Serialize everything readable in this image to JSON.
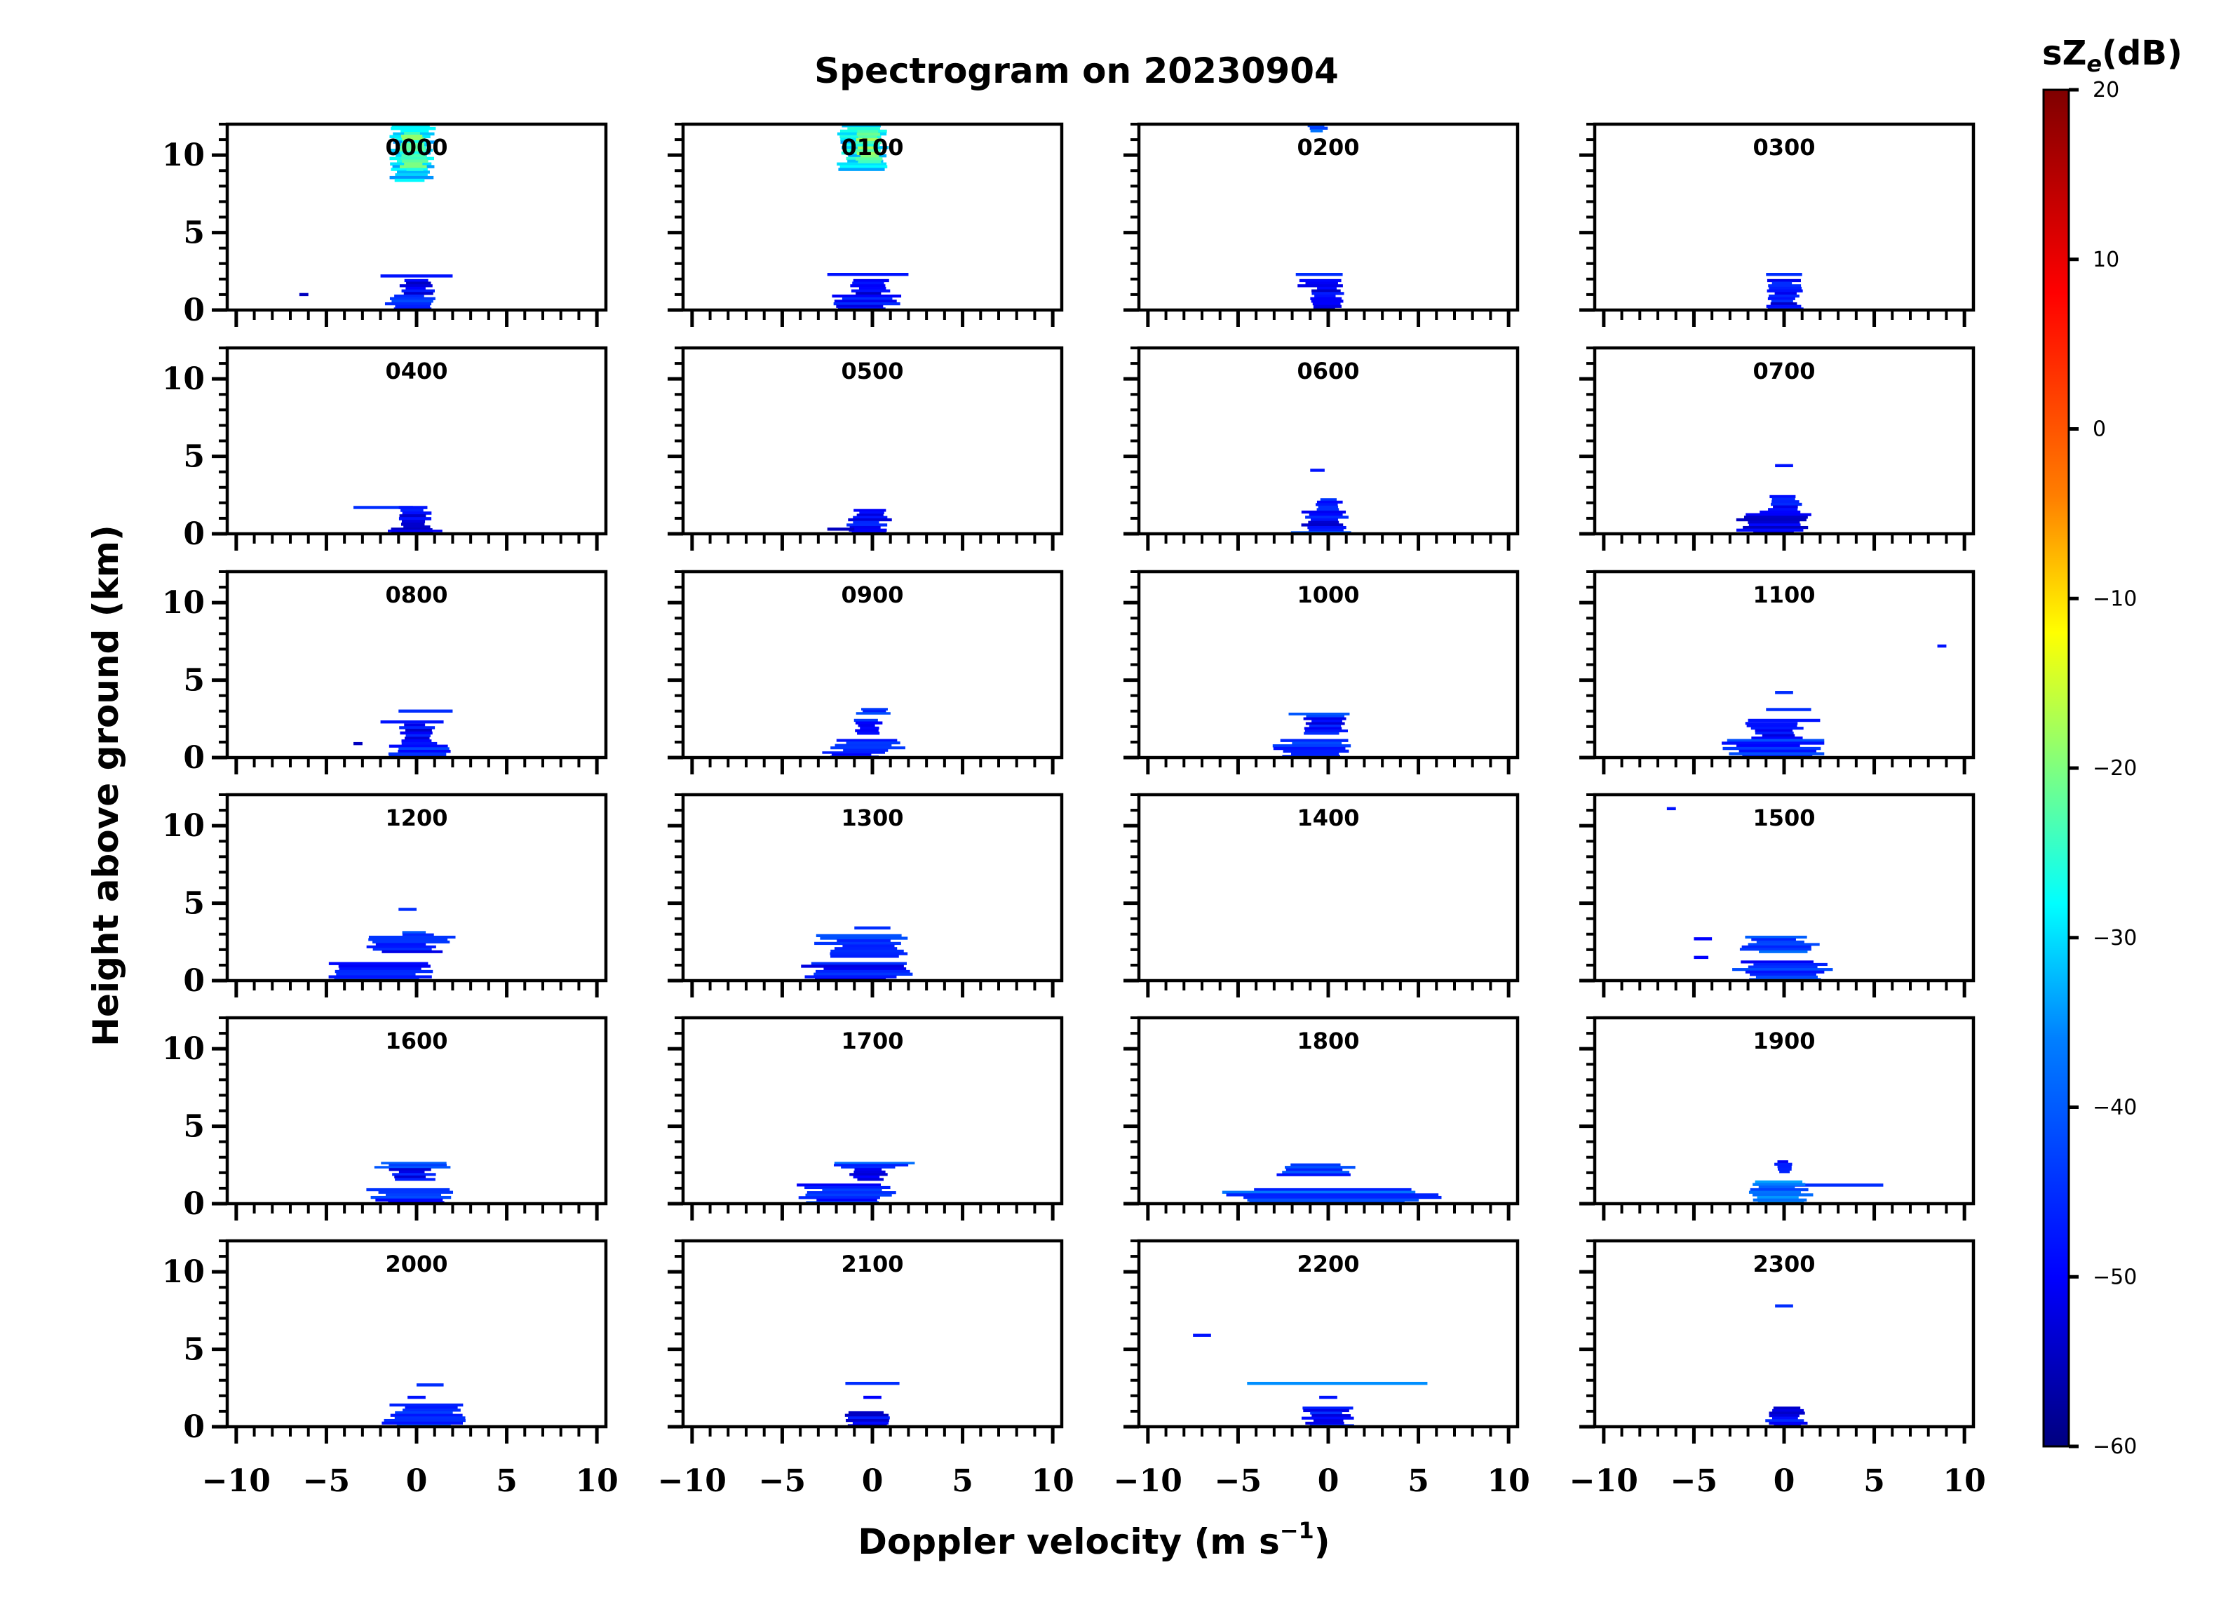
{
  "figure": {
    "title": "Spectrogram on 20230904",
    "xlabel": "Doppler velocity (m s",
    "xlabel_sup": "−1",
    "xlabel_end": ")",
    "ylabel": "Height above ground (km)",
    "colorbar_label_main": "sZ",
    "colorbar_label_sub": "e",
    "colorbar_label_end": "(dB)"
  },
  "chart_data": {
    "type": "heatmap",
    "title": "Spectrogram on 20230904",
    "xlabel": "Doppler velocity (m s−1)",
    "ylabel": "Height above ground (km)",
    "xlim": [
      -10.5,
      10.5
    ],
    "ylim": [
      0,
      12
    ],
    "x_ticks": [
      -10,
      -5,
      0,
      5,
      10
    ],
    "x_tick_labels": [
      "−10",
      "−5",
      "0",
      "5",
      "10"
    ],
    "y_ticks": [
      0,
      5,
      10
    ],
    "y_tick_labels": [
      "0",
      "5",
      "10"
    ],
    "colorbar": {
      "label": "sZe(dB)",
      "range": [
        -60,
        20
      ],
      "ticks": [
        20,
        10,
        0,
        -10,
        -20,
        -30,
        -40,
        -50,
        -60
      ],
      "tick_labels": [
        "20",
        "10",
        "0",
        "−10",
        "−20",
        "−30",
        "−40",
        "−50",
        "−60"
      ],
      "colormap": [
        "#00007f",
        "#0000ff",
        "#007fff",
        "#00ffff",
        "#7fff7f",
        "#ffff00",
        "#ff7f00",
        "#ff0000",
        "#7f0000"
      ]
    },
    "panels": [
      {
        "label": "0000",
        "features": [
          {
            "v": [
              -1.5,
              1.0
            ],
            "h": [
              8.3,
              12.0
            ],
            "dbz": -30
          },
          {
            "v": [
              -1.0,
              0.6
            ],
            "h": [
              9.0,
              11.5
            ],
            "dbz": -22
          },
          {
            "v": [
              -2.0,
              2.0
            ],
            "h": [
              2.1,
              2.3
            ],
            "dbz": -48
          },
          {
            "v": [
              -1.0,
              1.0
            ],
            "h": [
              1.0,
              2.0
            ],
            "dbz": -52
          },
          {
            "v": [
              -1.8,
              1.2
            ],
            "h": [
              0.0,
              1.0
            ],
            "dbz": -46
          },
          {
            "v": [
              -6.5,
              -6.0
            ],
            "h": [
              0.9,
              1.1
            ],
            "dbz": -55
          }
        ]
      },
      {
        "label": "0100",
        "features": [
          {
            "v": [
              -2.0,
              1.0
            ],
            "h": [
              9.0,
              12.0
            ],
            "dbz": -30
          },
          {
            "v": [
              -1.0,
              0.5
            ],
            "h": [
              9.5,
              11.8
            ],
            "dbz": -22
          },
          {
            "v": [
              -2.5,
              2.0
            ],
            "h": [
              2.2,
              2.4
            ],
            "dbz": -48
          },
          {
            "v": [
              -1.2,
              1.0
            ],
            "h": [
              1.0,
              2.0
            ],
            "dbz": -52
          },
          {
            "v": [
              -2.5,
              1.5
            ],
            "h": [
              0.0,
              1.0
            ],
            "dbz": -48
          }
        ]
      },
      {
        "label": "0200",
        "features": [
          {
            "v": [
              -1.2,
              0.0
            ],
            "h": [
              11.5,
              12.0
            ],
            "dbz": -40
          },
          {
            "v": [
              -1.8,
              0.8
            ],
            "h": [
              2.2,
              2.4
            ],
            "dbz": -45
          },
          {
            "v": [
              -2.0,
              1.0
            ],
            "h": [
              1.5,
              2.0
            ],
            "dbz": -50
          },
          {
            "v": [
              -1.0,
              0.8
            ],
            "h": [
              0.0,
              1.5
            ],
            "dbz": -50
          }
        ]
      },
      {
        "label": "0300",
        "features": [
          {
            "v": [
              -1.0,
              1.0
            ],
            "h": [
              2.2,
              2.4
            ],
            "dbz": -45
          },
          {
            "v": [
              -1.0,
              1.0
            ],
            "h": [
              0.0,
              2.0
            ],
            "dbz": -50
          }
        ]
      },
      {
        "label": "0400",
        "features": [
          {
            "v": [
              -3.5,
              -0.2
            ],
            "h": [
              1.6,
              1.8
            ],
            "dbz": -45
          },
          {
            "v": [
              -1.2,
              1.0
            ],
            "h": [
              0.0,
              1.8
            ],
            "dbz": -50
          },
          {
            "v": [
              -2.0,
              1.5
            ],
            "h": [
              0.0,
              0.4
            ],
            "dbz": -52
          }
        ]
      },
      {
        "label": "0500",
        "features": [
          {
            "v": [
              -1.0,
              1.0
            ],
            "h": [
              1.0,
              1.6
            ],
            "dbz": -48
          },
          {
            "v": [
              -1.5,
              1.0
            ],
            "h": [
              0.0,
              1.0
            ],
            "dbz": -50
          },
          {
            "v": [
              -2.5,
              -1.0
            ],
            "h": [
              0.2,
              0.4
            ],
            "dbz": -55
          }
        ]
      },
      {
        "label": "0600",
        "features": [
          {
            "v": [
              -1.0,
              -0.2
            ],
            "h": [
              4.0,
              4.2
            ],
            "dbz": -48
          },
          {
            "v": [
              -0.8,
              0.8
            ],
            "h": [
              1.5,
              2.3
            ],
            "dbz": -48
          },
          {
            "v": [
              -1.5,
              1.0
            ],
            "h": [
              0.5,
              1.5
            ],
            "dbz": -50
          },
          {
            "v": [
              -2.0,
              1.5
            ],
            "h": [
              0.0,
              0.5
            ],
            "dbz": -45
          }
        ]
      },
      {
        "label": "0700",
        "features": [
          {
            "v": [
              -0.5,
              0.5
            ],
            "h": [
              4.3,
              4.5
            ],
            "dbz": -48
          },
          {
            "v": [
              -1.0,
              1.0
            ],
            "h": [
              1.5,
              2.5
            ],
            "dbz": -48
          },
          {
            "v": [
              -2.5,
              1.5
            ],
            "h": [
              0.0,
              1.5
            ],
            "dbz": -50
          }
        ]
      },
      {
        "label": "0800",
        "features": [
          {
            "v": [
              -1.0,
              2.0
            ],
            "h": [
              2.9,
              3.1
            ],
            "dbz": -45
          },
          {
            "v": [
              -2.0,
              1.5
            ],
            "h": [
              2.2,
              2.4
            ],
            "dbz": -48
          },
          {
            "v": [
              -1.0,
              1.0
            ],
            "h": [
              1.0,
              2.2
            ],
            "dbz": -50
          },
          {
            "v": [
              -1.5,
              2.0
            ],
            "h": [
              0.0,
              1.0
            ],
            "dbz": -46
          },
          {
            "v": [
              -3.5,
              -3.0
            ],
            "h": [
              0.8,
              1.0
            ],
            "dbz": -55
          }
        ]
      },
      {
        "label": "0900",
        "features": [
          {
            "v": [
              -1.0,
              1.0
            ],
            "h": [
              2.8,
              3.2
            ],
            "dbz": -45
          },
          {
            "v": [
              -1.0,
              0.5
            ],
            "h": [
              1.5,
              2.5
            ],
            "dbz": -48
          },
          {
            "v": [
              -2.5,
              2.0
            ],
            "h": [
              0.4,
              1.2
            ],
            "dbz": -46
          },
          {
            "v": [
              -3.0,
              0.5
            ],
            "h": [
              0.0,
              0.4
            ],
            "dbz": -50
          }
        ]
      },
      {
        "label": "1000",
        "features": [
          {
            "v": [
              -2.0,
              1.5
            ],
            "h": [
              2.6,
              2.9
            ],
            "dbz": -45
          },
          {
            "v": [
              -1.5,
              1.0
            ],
            "h": [
              1.5,
              2.6
            ],
            "dbz": -50
          },
          {
            "v": [
              -3.0,
              1.5
            ],
            "h": [
              0.0,
              1.2
            ],
            "dbz": -46
          }
        ]
      },
      {
        "label": "1100",
        "features": [
          {
            "v": [
              -0.5,
              0.5
            ],
            "h": [
              4.1,
              4.3
            ],
            "dbz": -45
          },
          {
            "v": [
              -1.0,
              1.5
            ],
            "h": [
              3.0,
              3.2
            ],
            "dbz": -45
          },
          {
            "v": [
              -2.0,
              2.0
            ],
            "h": [
              2.3,
              2.5
            ],
            "dbz": -48
          },
          {
            "v": [
              -2.0,
              1.0
            ],
            "h": [
              1.2,
              2.3
            ],
            "dbz": -50
          },
          {
            "v": [
              -3.5,
              2.5
            ],
            "h": [
              0.0,
              1.2
            ],
            "dbz": -46
          },
          {
            "v": [
              8.5,
              9.0
            ],
            "h": [
              7.1,
              7.3
            ],
            "dbz": -48
          }
        ]
      },
      {
        "label": "1200",
        "features": [
          {
            "v": [
              -1.0,
              0.0
            ],
            "h": [
              4.5,
              4.7
            ],
            "dbz": -45
          },
          {
            "v": [
              -1.0,
              1.0
            ],
            "h": [
              2.9,
              3.2
            ],
            "dbz": -45
          },
          {
            "v": [
              -3.0,
              2.0
            ],
            "h": [
              1.8,
              2.9
            ],
            "dbz": -48
          },
          {
            "v": [
              -5.5,
              1.5
            ],
            "h": [
              0.0,
              1.2
            ],
            "dbz": -46
          }
        ]
      },
      {
        "label": "1300",
        "features": [
          {
            "v": [
              -1.0,
              1.0
            ],
            "h": [
              3.3,
              3.5
            ],
            "dbz": -45
          },
          {
            "v": [
              -3.0,
              2.0
            ],
            "h": [
              1.5,
              3.0
            ],
            "dbz": -42
          },
          {
            "v": [
              -4.0,
              2.5
            ],
            "h": [
              0.0,
              1.2
            ],
            "dbz": -48
          }
        ]
      },
      {
        "label": "1400",
        "features": []
      },
      {
        "label": "1500",
        "features": [
          {
            "v": [
              -6.5,
              -6.0
            ],
            "h": [
              11.0,
              11.2
            ],
            "dbz": -48
          },
          {
            "v": [
              -5.0,
              -4.0
            ],
            "h": [
              2.6,
              2.8
            ],
            "dbz": -50
          },
          {
            "v": [
              -5.0,
              -4.2
            ],
            "h": [
              1.4,
              1.6
            ],
            "dbz": -50
          },
          {
            "v": [
              -2.5,
              2.0
            ],
            "h": [
              1.8,
              2.9
            ],
            "dbz": -42
          },
          {
            "v": [
              -3.0,
              3.0
            ],
            "h": [
              0.0,
              1.3
            ],
            "dbz": -46
          }
        ]
      },
      {
        "label": "1600",
        "features": [
          {
            "v": [
              -2.5,
              2.5
            ],
            "h": [
              2.3,
              2.7
            ],
            "dbz": -42
          },
          {
            "v": [
              -1.5,
              1.0
            ],
            "h": [
              1.5,
              2.3
            ],
            "dbz": -50
          },
          {
            "v": [
              -3.0,
              2.5
            ],
            "h": [
              0.0,
              1.0
            ],
            "dbz": -46
          }
        ]
      },
      {
        "label": "1700",
        "features": [
          {
            "v": [
              -2.5,
              2.5
            ],
            "h": [
              2.3,
              2.7
            ],
            "dbz": -42
          },
          {
            "v": [
              -1.5,
              1.0
            ],
            "h": [
              1.5,
              2.3
            ],
            "dbz": -50
          },
          {
            "v": [
              -4.0,
              1.0
            ],
            "h": [
              0.0,
              1.3
            ],
            "dbz": -46
          }
        ]
      },
      {
        "label": "1800",
        "features": [
          {
            "v": [
              -3.0,
              1.5
            ],
            "h": [
              1.8,
              2.6
            ],
            "dbz": -45
          },
          {
            "v": [
              -6.0,
              6.0
            ],
            "h": [
              0.0,
              1.0
            ],
            "dbz": -42
          }
        ]
      },
      {
        "label": "1900",
        "features": [
          {
            "v": [
              -0.5,
              0.5
            ],
            "h": [
              2.0,
              2.8
            ],
            "dbz": -48
          },
          {
            "v": [
              -1.0,
              5.5
            ],
            "h": [
              1.1,
              1.3
            ],
            "dbz": -45
          },
          {
            "v": [
              -2.0,
              1.5
            ],
            "h": [
              0.0,
              1.5
            ],
            "dbz": -38
          }
        ]
      },
      {
        "label": "2000",
        "features": [
          {
            "v": [
              0.0,
              1.5
            ],
            "h": [
              2.6,
              2.8
            ],
            "dbz": -45
          },
          {
            "v": [
              -0.5,
              0.5
            ],
            "h": [
              1.8,
              2.0
            ],
            "dbz": -48
          },
          {
            "v": [
              -2.0,
              3.0
            ],
            "h": [
              0.0,
              1.5
            ],
            "dbz": -46
          }
        ]
      },
      {
        "label": "2100",
        "features": [
          {
            "v": [
              -1.5,
              1.5
            ],
            "h": [
              2.7,
              2.9
            ],
            "dbz": -45
          },
          {
            "v": [
              -0.5,
              0.5
            ],
            "h": [
              1.8,
              2.0
            ],
            "dbz": -50
          },
          {
            "v": [
              -1.5,
              1.0
            ],
            "h": [
              0.0,
              1.0
            ],
            "dbz": -50
          }
        ]
      },
      {
        "label": "2200",
        "features": [
          {
            "v": [
              -7.5,
              -6.5
            ],
            "h": [
              5.8,
              6.0
            ],
            "dbz": -48
          },
          {
            "v": [
              -4.5,
              5.5
            ],
            "h": [
              2.7,
              2.9
            ],
            "dbz": -35
          },
          {
            "v": [
              -0.5,
              0.5
            ],
            "h": [
              1.8,
              2.0
            ],
            "dbz": -48
          },
          {
            "v": [
              -1.5,
              1.5
            ],
            "h": [
              0.0,
              1.3
            ],
            "dbz": -48
          }
        ]
      },
      {
        "label": "2300",
        "features": [
          {
            "v": [
              -0.5,
              0.5
            ],
            "h": [
              7.7,
              7.9
            ],
            "dbz": -45
          },
          {
            "v": [
              -1.0,
              1.2
            ],
            "h": [
              0.0,
              1.3
            ],
            "dbz": -50
          }
        ]
      }
    ]
  }
}
